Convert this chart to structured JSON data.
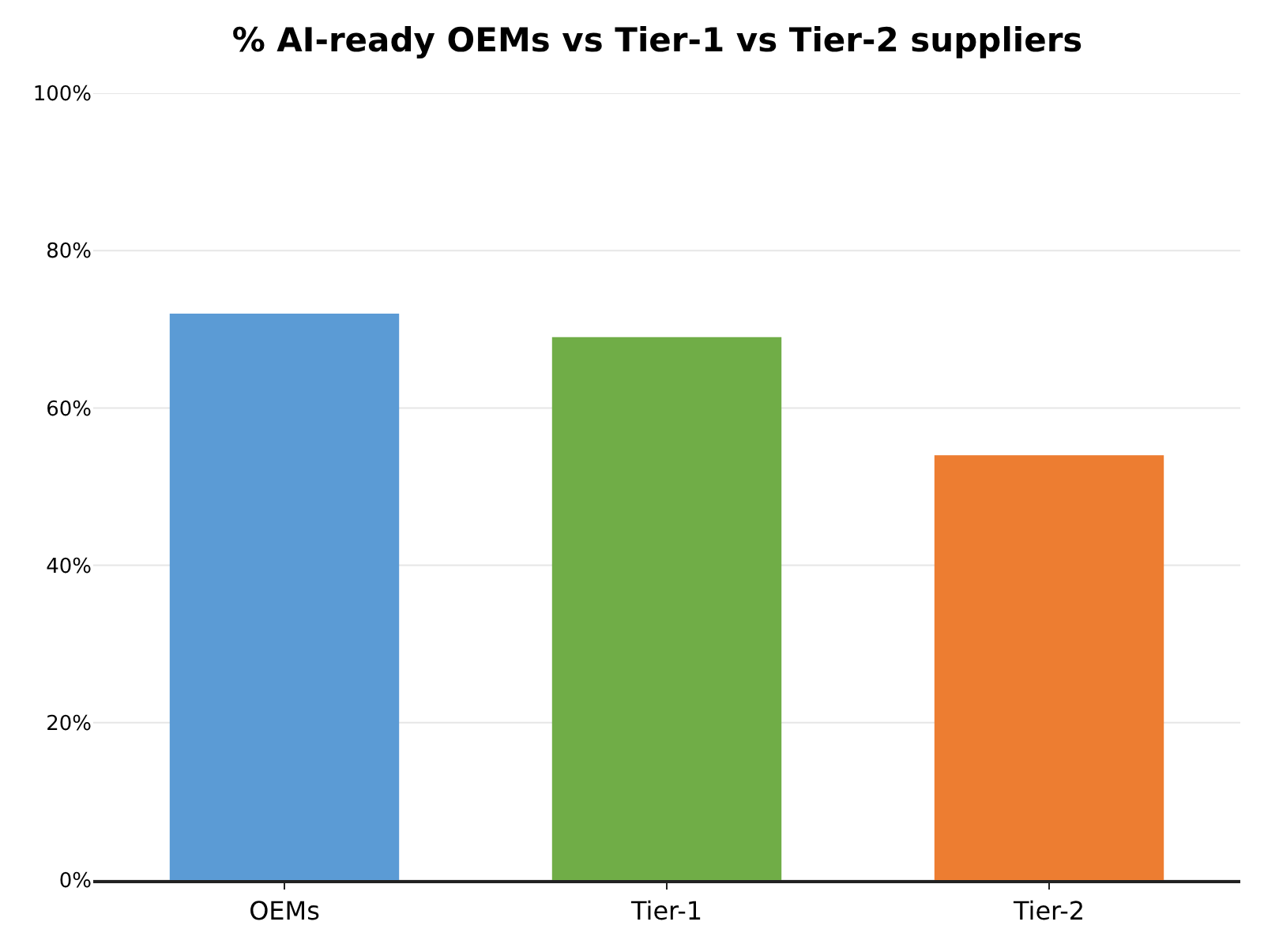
{
  "chart_data": {
    "type": "bar",
    "title": "% AI-ready OEMs vs Tier-1 vs Tier-2 suppliers",
    "categories": [
      "OEMs",
      "Tier-1",
      "Tier-2"
    ],
    "values": [
      72,
      69,
      54
    ],
    "colors": [
      "#5b9bd5",
      "#70ad47",
      "#ed7d31"
    ],
    "ylim": [
      0,
      100
    ],
    "yticks": [
      {
        "value": 0,
        "label": "0%"
      },
      {
        "value": 20,
        "label": "20%"
      },
      {
        "value": 40,
        "label": "40%"
      },
      {
        "value": 60,
        "label": "60%"
      },
      {
        "value": 80,
        "label": "80%"
      },
      {
        "value": 100,
        "label": "100%"
      }
    ],
    "grid": "y"
  }
}
